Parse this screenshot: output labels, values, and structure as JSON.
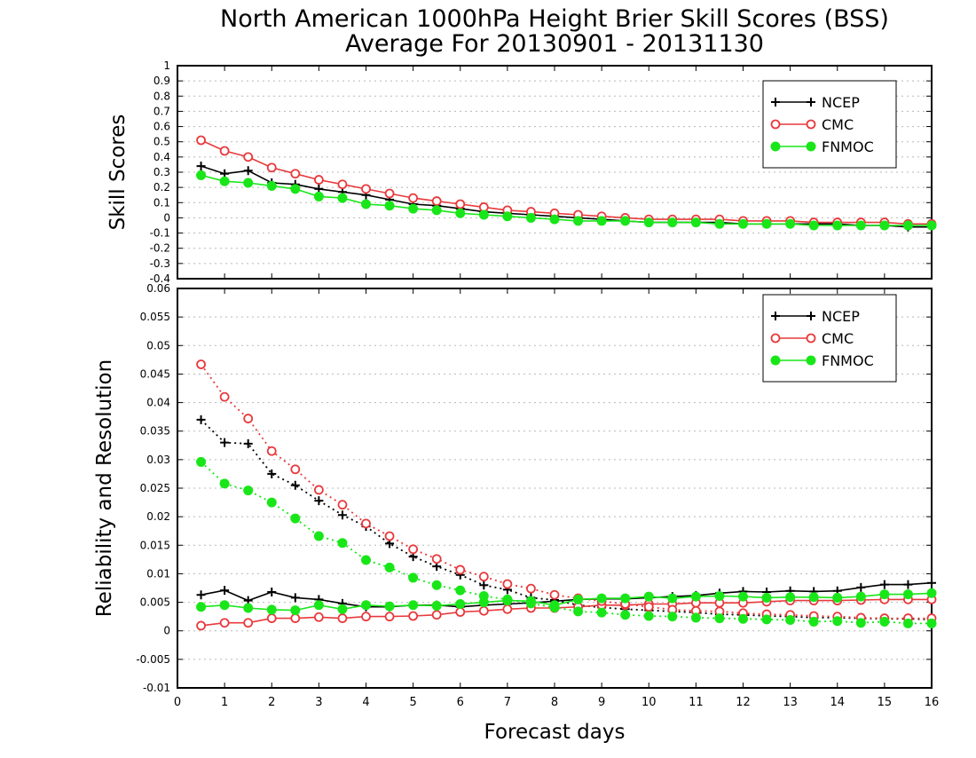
{
  "title_line1": "North American 1000hPa Height Brier Skill Scores (BSS)",
  "title_line2": "Average For 20130901 - 20131130",
  "xlabel": "Forecast days",
  "colors": {
    "NCEP": "#000000",
    "CMC": "#e8393c",
    "FNMOC": "#19e619"
  },
  "chart_data": [
    {
      "type": "line",
      "ylabel": "Skill Scores",
      "xlim": [
        0,
        16
      ],
      "ylim": [
        -0.4,
        1
      ],
      "yticks": [
        "-0.4",
        "-0.3",
        "-0.2",
        "-0.1",
        "0",
        "0.1",
        "0.2",
        "0.3",
        "0.4",
        "0.5",
        "0.6",
        "0.7",
        "0.8",
        "0.9",
        "1"
      ],
      "xticks": [
        "0",
        "1",
        "2",
        "3",
        "4",
        "5",
        "6",
        "7",
        "8",
        "9",
        "10",
        "11",
        "12",
        "13",
        "14",
        "15",
        "16"
      ],
      "legend": "top-right",
      "grid": true,
      "x": [
        0.5,
        1,
        1.5,
        2,
        2.5,
        3,
        3.5,
        4,
        4.5,
        5,
        5.5,
        6,
        6.5,
        7,
        7.5,
        8,
        8.5,
        9,
        9.5,
        10,
        10.5,
        11,
        11.5,
        12,
        12.5,
        13,
        13.5,
        14,
        14.5,
        15,
        15.5,
        16
      ],
      "series": [
        {
          "name": "NCEP",
          "marker": "plus",
          "style": "solid",
          "values": [
            0.34,
            0.29,
            0.31,
            0.23,
            0.22,
            0.19,
            0.17,
            0.15,
            0.12,
            0.09,
            0.08,
            0.06,
            0.04,
            0.03,
            0.02,
            0.01,
            0.0,
            -0.01,
            -0.02,
            -0.03,
            -0.03,
            -0.03,
            -0.03,
            -0.04,
            -0.04,
            -0.04,
            -0.04,
            -0.04,
            -0.05,
            -0.05,
            -0.06,
            -0.06
          ]
        },
        {
          "name": "CMC",
          "marker": "open-circle",
          "style": "solid",
          "values": [
            0.51,
            0.44,
            0.4,
            0.33,
            0.29,
            0.25,
            0.22,
            0.19,
            0.16,
            0.13,
            0.11,
            0.09,
            0.07,
            0.05,
            0.04,
            0.03,
            0.02,
            0.01,
            0.0,
            -0.01,
            -0.01,
            -0.01,
            -0.01,
            -0.02,
            -0.02,
            -0.02,
            -0.03,
            -0.03,
            -0.03,
            -0.03,
            -0.04,
            -0.04
          ]
        },
        {
          "name": "FNMOC",
          "marker": "filled-circle",
          "style": "solid",
          "values": [
            0.28,
            0.24,
            0.23,
            0.21,
            0.19,
            0.14,
            0.13,
            0.09,
            0.08,
            0.06,
            0.05,
            0.03,
            0.02,
            0.01,
            0.0,
            -0.01,
            -0.02,
            -0.02,
            -0.02,
            -0.03,
            -0.03,
            -0.03,
            -0.04,
            -0.04,
            -0.04,
            -0.04,
            -0.05,
            -0.05,
            -0.05,
            -0.05,
            -0.05,
            -0.05
          ]
        }
      ]
    },
    {
      "type": "line",
      "ylabel": "Reliability and Resolution",
      "xlim": [
        0,
        16
      ],
      "ylim": [
        -0.01,
        0.06
      ],
      "yticks": [
        "-0.01",
        "-0.005",
        "0",
        "0.005",
        "0.01",
        "0.015",
        "0.02",
        "0.025",
        "0.03",
        "0.035",
        "0.04",
        "0.045",
        "0.05",
        "0.055",
        "0.06"
      ],
      "xticks": [
        "0",
        "1",
        "2",
        "3",
        "4",
        "5",
        "6",
        "7",
        "8",
        "9",
        "10",
        "11",
        "12",
        "13",
        "14",
        "15",
        "16"
      ],
      "legend": "top-right",
      "grid": true,
      "x": [
        0.5,
        1,
        1.5,
        2,
        2.5,
        3,
        3.5,
        4,
        4.5,
        5,
        5.5,
        6,
        6.5,
        7,
        7.5,
        8,
        8.5,
        9,
        9.5,
        10,
        10.5,
        11,
        11.5,
        12,
        12.5,
        13,
        13.5,
        14,
        14.5,
        15,
        15.5,
        16
      ],
      "series": [
        {
          "name": "NCEP",
          "marker": "plus",
          "style": "solid",
          "values": [
            0.0063,
            0.0071,
            0.0053,
            0.0068,
            0.0058,
            0.0055,
            0.0048,
            0.0042,
            0.0042,
            0.0045,
            0.0045,
            0.0042,
            0.0045,
            0.0047,
            0.0049,
            0.0052,
            0.0055,
            0.0056,
            0.0056,
            0.0058,
            0.006,
            0.0062,
            0.0066,
            0.0069,
            0.0068,
            0.007,
            0.0069,
            0.007,
            0.0076,
            0.0081,
            0.0081,
            0.0084
          ]
        },
        {
          "name": "NCEP",
          "marker": "plus",
          "style": "dotted",
          "values": [
            0.037,
            0.033,
            0.0328,
            0.0275,
            0.0255,
            0.0228,
            0.0203,
            0.0183,
            0.0153,
            0.013,
            0.0113,
            0.0098,
            0.008,
            0.0072,
            0.0058,
            0.0054,
            0.0045,
            0.0041,
            0.0038,
            0.0036,
            0.0034,
            0.0032,
            0.0029,
            0.0028,
            0.0026,
            0.0025,
            0.0023,
            0.0023,
            0.0022,
            0.0021,
            0.0021,
            0.002
          ]
        },
        {
          "name": "CMC",
          "marker": "open-circle",
          "style": "solid",
          "values": [
            0.0009,
            0.0014,
            0.0014,
            0.0022,
            0.0022,
            0.0024,
            0.0022,
            0.0025,
            0.0025,
            0.0026,
            0.0028,
            0.0033,
            0.0035,
            0.0038,
            0.004,
            0.004,
            0.0042,
            0.0045,
            0.0045,
            0.0047,
            0.0047,
            0.0049,
            0.0049,
            0.0049,
            0.0051,
            0.0053,
            0.0053,
            0.0053,
            0.0054,
            0.0055,
            0.0055,
            0.0055
          ]
        },
        {
          "name": "CMC",
          "marker": "open-circle",
          "style": "dotted",
          "values": [
            0.0467,
            0.041,
            0.0372,
            0.0315,
            0.0283,
            0.0247,
            0.0221,
            0.0188,
            0.0166,
            0.0143,
            0.0126,
            0.0107,
            0.0095,
            0.0082,
            0.0074,
            0.0063,
            0.0057,
            0.0052,
            0.0047,
            0.0042,
            0.0037,
            0.0035,
            0.0034,
            0.0031,
            0.0029,
            0.0028,
            0.0026,
            0.0025,
            0.0023,
            0.0022,
            0.0022,
            0.0022
          ]
        },
        {
          "name": "FNMOC",
          "marker": "filled-circle",
          "style": "solid",
          "values": [
            0.0042,
            0.0045,
            0.004,
            0.0037,
            0.0036,
            0.0045,
            0.0038,
            0.0045,
            0.0043,
            0.0045,
            0.0044,
            0.0047,
            0.005,
            0.0053,
            0.0052,
            0.0045,
            0.0055,
            0.0057,
            0.0057,
            0.006,
            0.0057,
            0.006,
            0.0061,
            0.006,
            0.0058,
            0.0059,
            0.0059,
            0.0058,
            0.006,
            0.0064,
            0.0064,
            0.0066
          ]
        },
        {
          "name": "FNMOC",
          "marker": "filled-circle",
          "style": "dotted",
          "values": [
            0.0296,
            0.0258,
            0.0246,
            0.0225,
            0.0197,
            0.0166,
            0.0154,
            0.0124,
            0.0111,
            0.0093,
            0.008,
            0.0071,
            0.0061,
            0.0055,
            0.0048,
            0.0041,
            0.0034,
            0.0032,
            0.0028,
            0.0026,
            0.0025,
            0.0023,
            0.0022,
            0.0021,
            0.002,
            0.0019,
            0.0016,
            0.0017,
            0.0014,
            0.0016,
            0.0013,
            0.0013
          ]
        }
      ]
    }
  ]
}
